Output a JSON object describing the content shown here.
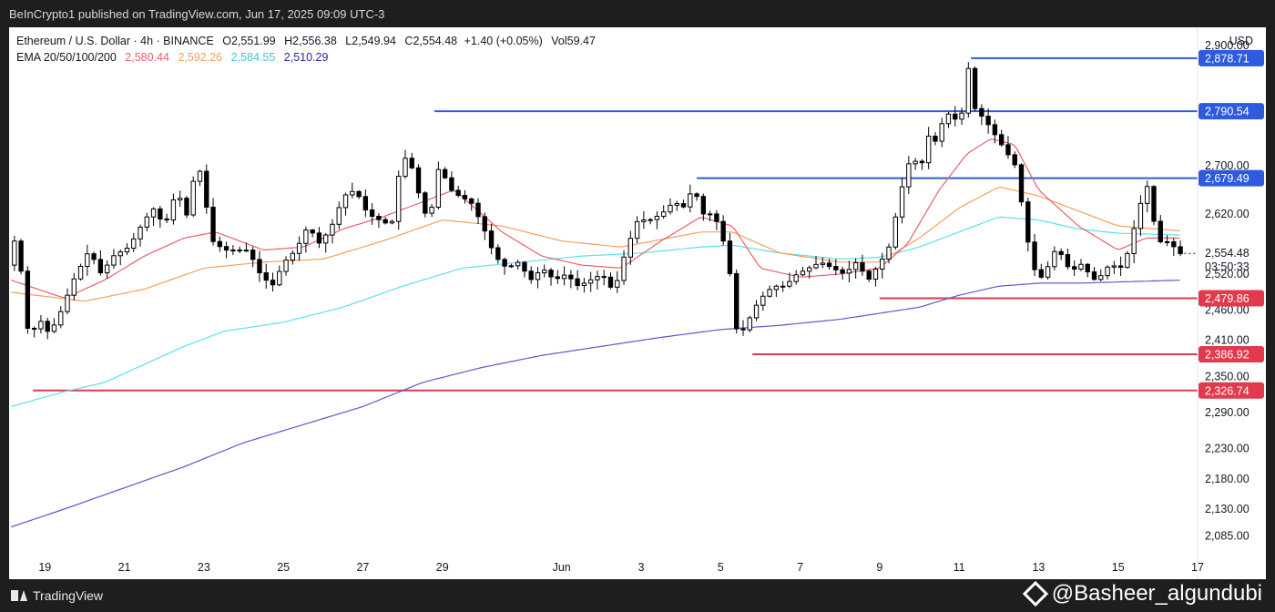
{
  "header": {
    "text": "BeInCrypto1 published on TradingView.com, Jun 17, 2025 09:09 UTC-3"
  },
  "legend": {
    "symbol": "Ethereum / U.S. Dollar · 4h · BINANCE",
    "o_label": "O",
    "o": "2,551.99",
    "h_label": "H",
    "h": "2,556.38",
    "l_label": "L",
    "l": "2,549.94",
    "c_label": "C",
    "c": "2,554.48",
    "change": "+1.40 (+0.05%)",
    "vol_label": "Vol",
    "vol": "59.47",
    "ema_label": "EMA 20/50/100/200",
    "ema20": "2,580.44",
    "ema50": "2,592.26",
    "ema100": "2,584.55",
    "ema200": "2,510.29"
  },
  "currency": "USD",
  "footer": {
    "brand": "TradingView",
    "watermark": "@Basheer_algundubi"
  },
  "colors": {
    "up": "#ffffff",
    "down": "#000000",
    "ema20": "#e8616a",
    "ema50": "#f5a05a",
    "ema100": "#5ce0f0",
    "ema200": "#5b5bc9",
    "resistance": "#2e5bde",
    "support": "#e03a4c"
  },
  "chart_data": {
    "type": "candlestick",
    "title": "Ethereum / U.S. Dollar · 4h · BINANCE",
    "ylabel": "USD",
    "ylim": [
      2045,
      2930
    ],
    "y_ticks": [
      "2,085.00",
      "2,130.00",
      "2,180.00",
      "2,230.00",
      "2,290.00",
      "2,350.00",
      "2,410.00",
      "2,460.00",
      "2,520.00",
      "2,620.00",
      "2,700.00",
      "2,900.00"
    ],
    "x_labels": [
      {
        "day": 0.0,
        "label": "19"
      },
      {
        "day": 2.0,
        "label": "21"
      },
      {
        "day": 4.0,
        "label": "23"
      },
      {
        "day": 6.0,
        "label": "25"
      },
      {
        "day": 8.0,
        "label": "27"
      },
      {
        "day": 10.0,
        "label": "29"
      },
      {
        "day": 13.0,
        "label": "Jun"
      },
      {
        "day": 15.0,
        "label": "3"
      },
      {
        "day": 17.0,
        "label": "5"
      },
      {
        "day": 19.0,
        "label": "7"
      },
      {
        "day": 21.0,
        "label": "9"
      },
      {
        "day": 23.0,
        "label": "11"
      },
      {
        "day": 25.0,
        "label": "13"
      },
      {
        "day": 27.0,
        "label": "15"
      },
      {
        "day": 29.0,
        "label": "17"
      }
    ],
    "x_range_days": [
      -0.9,
      29.0
    ],
    "levels": [
      {
        "price": 2878.71,
        "label": "2,878.71",
        "kind": "resistance",
        "from_day": 23.3
      },
      {
        "price": 2790.54,
        "label": "2,790.54",
        "kind": "resistance",
        "from_day": 9.8
      },
      {
        "price": 2679.49,
        "label": "2,679.49",
        "kind": "resistance",
        "from_day": 16.4
      },
      {
        "price": 2479.86,
        "label": "2,479.86",
        "kind": "support",
        "from_day": 21.0
      },
      {
        "price": 2386.92,
        "label": "2,386.92",
        "kind": "support",
        "from_day": 17.8
      },
      {
        "price": 2326.74,
        "label": "2,326.74",
        "kind": "support",
        "from_day": -0.3
      }
    ],
    "last_price": {
      "price": 2554.48,
      "label": "2,554.48",
      "countdown": "03:50:33"
    },
    "anchors": [
      [
        -0.85,
        2535
      ],
      [
        -0.7,
        2580
      ],
      [
        -0.5,
        2520
      ],
      [
        -0.3,
        2400
      ],
      [
        -0.1,
        2450
      ],
      [
        0.2,
        2420
      ],
      [
        0.5,
        2460
      ],
      [
        0.8,
        2510
      ],
      [
        1.2,
        2560
      ],
      [
        1.5,
        2520
      ],
      [
        1.8,
        2550
      ],
      [
        2.2,
        2565
      ],
      [
        2.5,
        2600
      ],
      [
        2.8,
        2630
      ],
      [
        3.1,
        2600
      ],
      [
        3.4,
        2660
      ],
      [
        3.7,
        2610
      ],
      [
        3.9,
        2720
      ],
      [
        4.1,
        2650
      ],
      [
        4.3,
        2575
      ],
      [
        4.6,
        2560
      ],
      [
        4.9,
        2560
      ],
      [
        5.2,
        2560
      ],
      [
        5.5,
        2520
      ],
      [
        5.8,
        2500
      ],
      [
        6.1,
        2540
      ],
      [
        6.4,
        2560
      ],
      [
        6.7,
        2600
      ],
      [
        7.0,
        2570
      ],
      [
        7.3,
        2600
      ],
      [
        7.6,
        2650
      ],
      [
        7.9,
        2660
      ],
      [
        8.2,
        2620
      ],
      [
        8.5,
        2610
      ],
      [
        8.8,
        2600
      ],
      [
        9.0,
        2690
      ],
      [
        9.2,
        2720
      ],
      [
        9.4,
        2680
      ],
      [
        9.6,
        2620
      ],
      [
        9.8,
        2625
      ],
      [
        10.0,
        2700
      ],
      [
        10.3,
        2660
      ],
      [
        10.5,
        2650
      ],
      [
        10.8,
        2640
      ],
      [
        11.1,
        2600
      ],
      [
        11.4,
        2550
      ],
      [
        11.7,
        2530
      ],
      [
        12.0,
        2540
      ],
      [
        12.3,
        2510
      ],
      [
        12.6,
        2530
      ],
      [
        12.9,
        2510
      ],
      [
        13.2,
        2520
      ],
      [
        13.5,
        2500
      ],
      [
        13.8,
        2510
      ],
      [
        14.1,
        2520
      ],
      [
        14.4,
        2490
      ],
      [
        14.7,
        2560
      ],
      [
        15.0,
        2610
      ],
      [
        15.3,
        2610
      ],
      [
        15.6,
        2620
      ],
      [
        15.9,
        2640
      ],
      [
        16.2,
        2630
      ],
      [
        16.4,
        2670
      ],
      [
        16.6,
        2620
      ],
      [
        16.9,
        2620
      ],
      [
        17.1,
        2590
      ],
      [
        17.3,
        2530
      ],
      [
        17.5,
        2420
      ],
      [
        17.7,
        2430
      ],
      [
        17.9,
        2460
      ],
      [
        18.1,
        2480
      ],
      [
        18.4,
        2500
      ],
      [
        18.7,
        2500
      ],
      [
        19.0,
        2520
      ],
      [
        19.3,
        2530
      ],
      [
        19.6,
        2540
      ],
      [
        19.9,
        2530
      ],
      [
        20.2,
        2520
      ],
      [
        20.5,
        2540
      ],
      [
        20.8,
        2510
      ],
      [
        21.0,
        2530
      ],
      [
        21.3,
        2560
      ],
      [
        21.5,
        2620
      ],
      [
        21.7,
        2680
      ],
      [
        21.9,
        2720
      ],
      [
        22.1,
        2690
      ],
      [
        22.3,
        2750
      ],
      [
        22.5,
        2740
      ],
      [
        22.7,
        2780
      ],
      [
        22.9,
        2790
      ],
      [
        23.1,
        2760
      ],
      [
        23.3,
        2870
      ],
      [
        23.4,
        2820
      ],
      [
        23.5,
        2790
      ],
      [
        23.7,
        2780
      ],
      [
        23.9,
        2760
      ],
      [
        24.1,
        2740
      ],
      [
        24.3,
        2720
      ],
      [
        24.5,
        2700
      ],
      [
        24.7,
        2620
      ],
      [
        24.9,
        2540
      ],
      [
        25.1,
        2510
      ],
      [
        25.3,
        2530
      ],
      [
        25.5,
        2560
      ],
      [
        25.7,
        2550
      ],
      [
        25.9,
        2520
      ],
      [
        26.1,
        2540
      ],
      [
        26.3,
        2525
      ],
      [
        26.5,
        2510
      ],
      [
        26.7,
        2520
      ],
      [
        26.9,
        2540
      ],
      [
        27.1,
        2525
      ],
      [
        27.3,
        2550
      ],
      [
        27.5,
        2600
      ],
      [
        27.7,
        2650
      ],
      [
        27.85,
        2670
      ],
      [
        28.0,
        2600
      ],
      [
        28.2,
        2565
      ],
      [
        28.4,
        2580
      ],
      [
        28.55,
        2554
      ]
    ],
    "ema20": [
      [
        -0.85,
        2510
      ],
      [
        0.5,
        2480
      ],
      [
        1.5,
        2510
      ],
      [
        2.5,
        2550
      ],
      [
        3.5,
        2580
      ],
      [
        4.3,
        2590
      ],
      [
        5.5,
        2560
      ],
      [
        6.5,
        2565
      ],
      [
        7.5,
        2595
      ],
      [
        8.5,
        2615
      ],
      [
        9.5,
        2640
      ],
      [
        10.3,
        2660
      ],
      [
        11.5,
        2590
      ],
      [
        12.5,
        2550
      ],
      [
        13.5,
        2535
      ],
      [
        14.5,
        2530
      ],
      [
        15.5,
        2575
      ],
      [
        16.5,
        2615
      ],
      [
        17.3,
        2600
      ],
      [
        18.0,
        2530
      ],
      [
        19.0,
        2515
      ],
      [
        20.0,
        2520
      ],
      [
        21.0,
        2530
      ],
      [
        21.7,
        2570
      ],
      [
        22.5,
        2660
      ],
      [
        23.2,
        2720
      ],
      [
        23.8,
        2745
      ],
      [
        24.4,
        2735
      ],
      [
        25.0,
        2660
      ],
      [
        26.0,
        2600
      ],
      [
        27.0,
        2560
      ],
      [
        27.7,
        2580
      ],
      [
        28.55,
        2580
      ]
    ],
    "ema50": [
      [
        -0.85,
        2490
      ],
      [
        1.0,
        2475
      ],
      [
        2.5,
        2495
      ],
      [
        4.0,
        2530
      ],
      [
        5.5,
        2540
      ],
      [
        7.0,
        2545
      ],
      [
        8.5,
        2575
      ],
      [
        10.0,
        2610
      ],
      [
        11.5,
        2600
      ],
      [
        13.0,
        2575
      ],
      [
        14.5,
        2565
      ],
      [
        16.5,
        2590
      ],
      [
        17.3,
        2590
      ],
      [
        18.5,
        2555
      ],
      [
        20.0,
        2540
      ],
      [
        21.0,
        2540
      ],
      [
        22.0,
        2580
      ],
      [
        23.0,
        2630
      ],
      [
        24.0,
        2665
      ],
      [
        25.0,
        2650
      ],
      [
        26.0,
        2625
      ],
      [
        27.0,
        2600
      ],
      [
        28.55,
        2592
      ]
    ],
    "ema100": [
      [
        -0.85,
        2300
      ],
      [
        0.5,
        2325
      ],
      [
        1.5,
        2340
      ],
      [
        2.5,
        2370
      ],
      [
        3.5,
        2400
      ],
      [
        4.5,
        2425
      ],
      [
        6.0,
        2440
      ],
      [
        7.5,
        2465
      ],
      [
        9.0,
        2500
      ],
      [
        10.5,
        2530
      ],
      [
        12.0,
        2540
      ],
      [
        13.5,
        2550
      ],
      [
        15.0,
        2555
      ],
      [
        16.5,
        2565
      ],
      [
        17.3,
        2568
      ],
      [
        18.5,
        2555
      ],
      [
        20.0,
        2545
      ],
      [
        21.0,
        2548
      ],
      [
        22.0,
        2565
      ],
      [
        23.0,
        2590
      ],
      [
        24.0,
        2615
      ],
      [
        25.0,
        2610
      ],
      [
        26.0,
        2595
      ],
      [
        27.0,
        2588
      ],
      [
        28.55,
        2585
      ]
    ],
    "ema200": [
      [
        -0.85,
        2100
      ],
      [
        0.5,
        2130
      ],
      [
        2.0,
        2165
      ],
      [
        3.5,
        2200
      ],
      [
        5.0,
        2240
      ],
      [
        6.5,
        2270
      ],
      [
        8.0,
        2300
      ],
      [
        9.5,
        2340
      ],
      [
        11.0,
        2365
      ],
      [
        12.5,
        2385
      ],
      [
        14.0,
        2400
      ],
      [
        15.5,
        2415
      ],
      [
        17.0,
        2428
      ],
      [
        18.5,
        2435
      ],
      [
        20.0,
        2445
      ],
      [
        21.0,
        2455
      ],
      [
        22.0,
        2465
      ],
      [
        23.0,
        2485
      ],
      [
        24.0,
        2500
      ],
      [
        25.0,
        2505
      ],
      [
        26.0,
        2505
      ],
      [
        27.0,
        2507
      ],
      [
        28.55,
        2510
      ]
    ]
  }
}
